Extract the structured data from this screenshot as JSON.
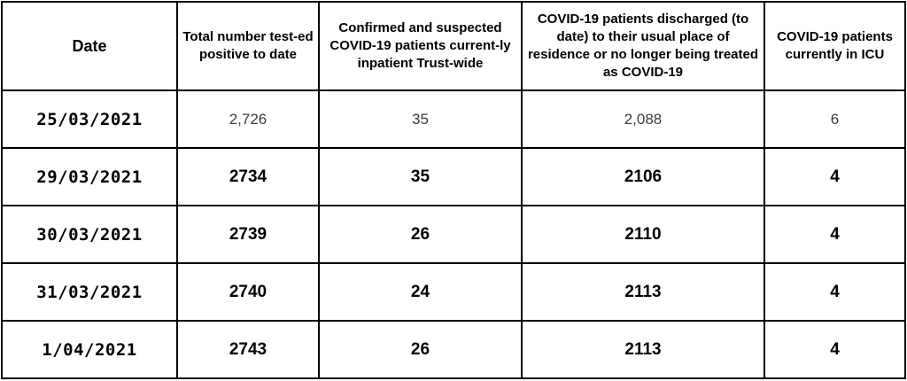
{
  "table": {
    "headers": [
      "Date",
      "Total number test-ed positive to date",
      "Confirmed and suspected COVID-19 patients current-ly inpatient Trust-wide",
      "COVID-19 patients discharged (to date) to their usual place of residence or no longer being treated as COVID-19",
      "COVID-19 patients currently in ICU"
    ],
    "rows": [
      [
        "25/03/2021",
        "2,726",
        "35",
        "2,088",
        "6"
      ],
      [
        "29/03/2021",
        "2734",
        "35",
        "2106",
        "4"
      ],
      [
        "30/03/2021",
        "2739",
        "26",
        "2110",
        "4"
      ],
      [
        "31/03/2021",
        "2740",
        "24",
        "2113",
        "4"
      ],
      [
        "1/04/2021",
        "2743",
        "26",
        "2113",
        "4"
      ]
    ]
  }
}
